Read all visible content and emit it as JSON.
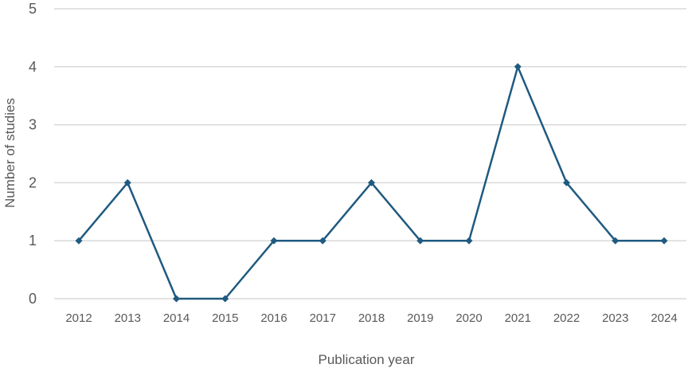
{
  "chart_data": {
    "type": "line",
    "title": "",
    "xlabel": "Publication year",
    "ylabel": "Number of studies",
    "categories": [
      "2012",
      "2013",
      "2014",
      "2015",
      "2016",
      "2017",
      "2018",
      "2019",
      "2020",
      "2021",
      "2022",
      "2023",
      "2024"
    ],
    "series": [
      {
        "values": [
          1,
          2,
          0,
          0,
          1,
          1,
          2,
          1,
          1,
          4,
          2,
          1,
          1
        ],
        "color": "#1f5a80",
        "marker": "diamond"
      }
    ],
    "ylim": [
      0,
      5
    ],
    "yticks": [
      "0",
      "1",
      "2",
      "3",
      "4",
      "5"
    ],
    "grid": true,
    "legend": "none"
  }
}
